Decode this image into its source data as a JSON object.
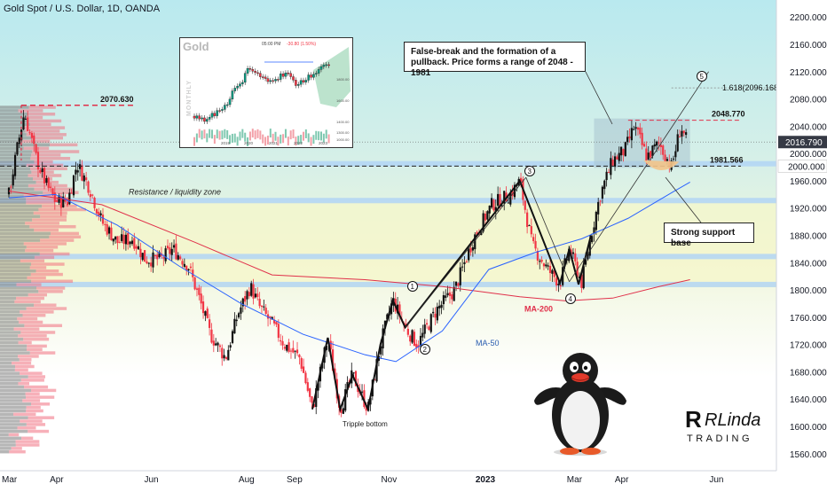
{
  "title": "Gold Spot / U.S. Dollar, 1D, OANDA",
  "chart_data": {
    "type": "candlestick",
    "title": "Gold Spot / U.S. Dollar, 1D, OANDA",
    "ylim": [
      1535,
      2225
    ],
    "y_ticks": [
      2200,
      2160,
      2120,
      2080,
      2040,
      2000,
      1960,
      1920,
      1880,
      1840,
      1800,
      1760,
      1720,
      1680,
      1640,
      1600,
      1560
    ],
    "x_labels": [
      "Mar",
      "Apr",
      "Jun",
      "Aug",
      "Sep",
      "Nov",
      "2023",
      "Mar",
      "Apr",
      "Jun"
    ],
    "x_label_days": [
      0,
      31,
      92,
      153,
      184,
      245,
      306,
      365,
      396,
      457
    ],
    "x_range_days": [
      0,
      470
    ],
    "current_price": "2016.790",
    "current_price_value": 2016.79,
    "price_path": [
      [
        0,
        1940
      ],
      [
        6,
        2015
      ],
      [
        10,
        2060
      ],
      [
        18,
        1990
      ],
      [
        24,
        1955
      ],
      [
        30,
        1930
      ],
      [
        38,
        1930
      ],
      [
        44,
        1985
      ],
      [
        52,
        1950
      ],
      [
        60,
        1900
      ],
      [
        70,
        1870
      ],
      [
        80,
        1875
      ],
      [
        88,
        1845
      ],
      [
        98,
        1845
      ],
      [
        106,
        1860
      ],
      [
        116,
        1835
      ],
      [
        124,
        1780
      ],
      [
        130,
        1735
      ],
      [
        140,
        1700
      ],
      [
        148,
        1765
      ],
      [
        156,
        1805
      ],
      [
        162,
        1775
      ],
      [
        170,
        1750
      ],
      [
        178,
        1720
      ],
      [
        188,
        1700
      ],
      [
        196,
        1625
      ],
      [
        206,
        1730
      ],
      [
        214,
        1625
      ],
      [
        222,
        1675
      ],
      [
        232,
        1625
      ],
      [
        240,
        1720
      ],
      [
        248,
        1785
      ],
      [
        256,
        1745
      ],
      [
        264,
        1720
      ],
      [
        276,
        1770
      ],
      [
        288,
        1800
      ],
      [
        300,
        1875
      ],
      [
        312,
        1925
      ],
      [
        324,
        1940
      ],
      [
        330,
        1960
      ],
      [
        338,
        1865
      ],
      [
        348,
        1830
      ],
      [
        356,
        1810
      ],
      [
        362,
        1860
      ],
      [
        370,
        1810
      ],
      [
        376,
        1880
      ],
      [
        382,
        1940
      ],
      [
        390,
        1990
      ],
      [
        398,
        2005
      ],
      [
        404,
        2040
      ],
      [
        412,
        1995
      ],
      [
        420,
        2015
      ],
      [
        428,
        1980
      ],
      [
        434,
        2040
      ],
      [
        438,
        2016.79
      ]
    ],
    "levels": [
      {
        "label": "2048.770",
        "value": 2048.77
      },
      {
        "label": "1981.566",
        "value": 1981.566
      },
      {
        "label": "1.618(2096.168)",
        "value": 2096.168
      },
      {
        "label": "2070.630",
        "value": 2070.63
      }
    ],
    "zones": [
      1985,
      1931,
      1849,
      1808
    ],
    "annotations": {
      "resistance": "Resistance / liquidity zone",
      "triple_bottom": "Tripple bottom",
      "ma200": "MA-200",
      "ma50": "MA-50",
      "wave_labels": [
        "1",
        "2",
        "3",
        "4",
        "5"
      ]
    },
    "series": [
      {
        "name": "MA-200",
        "values": [
          [
            0,
            1945
          ],
          [
            60,
            1925
          ],
          [
            120,
            1870
          ],
          [
            170,
            1822
          ],
          [
            230,
            1815
          ],
          [
            280,
            1805
          ],
          [
            330,
            1790
          ],
          [
            360,
            1784
          ],
          [
            390,
            1788
          ],
          [
            420,
            1805
          ],
          [
            440,
            1815
          ]
        ]
      },
      {
        "name": "MA-50",
        "values": [
          [
            0,
            1935
          ],
          [
            30,
            1940
          ],
          [
            70,
            1895
          ],
          [
            110,
            1835
          ],
          [
            150,
            1780
          ],
          [
            190,
            1735
          ],
          [
            230,
            1705
          ],
          [
            250,
            1695
          ],
          [
            280,
            1740
          ],
          [
            310,
            1830
          ],
          [
            340,
            1855
          ],
          [
            370,
            1875
          ],
          [
            400,
            1905
          ],
          [
            430,
            1945
          ],
          [
            440,
            1958
          ]
        ]
      }
    ]
  },
  "callouts": {
    "top": "False-break and the formation of a pullback. Price forms a range of 2048 - 1981",
    "support": "Strong support base"
  },
  "inset": {
    "title": "Gold",
    "header_time": "05:00 PM",
    "header_change": "-30.80 (1.50%)",
    "side_label": "MONTHLY",
    "x_labels": [
      "2019",
      "2020",
      "2021",
      "2022",
      "2023"
    ],
    "y_labels": [
      "1800.00",
      "1600.00",
      "1400.00",
      "1300.00",
      "1000.00"
    ]
  },
  "brand": {
    "name": "RLinda",
    "sub": "TRADING"
  },
  "colors": {
    "up": "#089981",
    "down": "#f23645",
    "zone": "#b2d5f5",
    "range": "#a9c4cf",
    "ma200": "#e0304a",
    "ma50": "#2962ff",
    "price_tag": "#363a45"
  }
}
